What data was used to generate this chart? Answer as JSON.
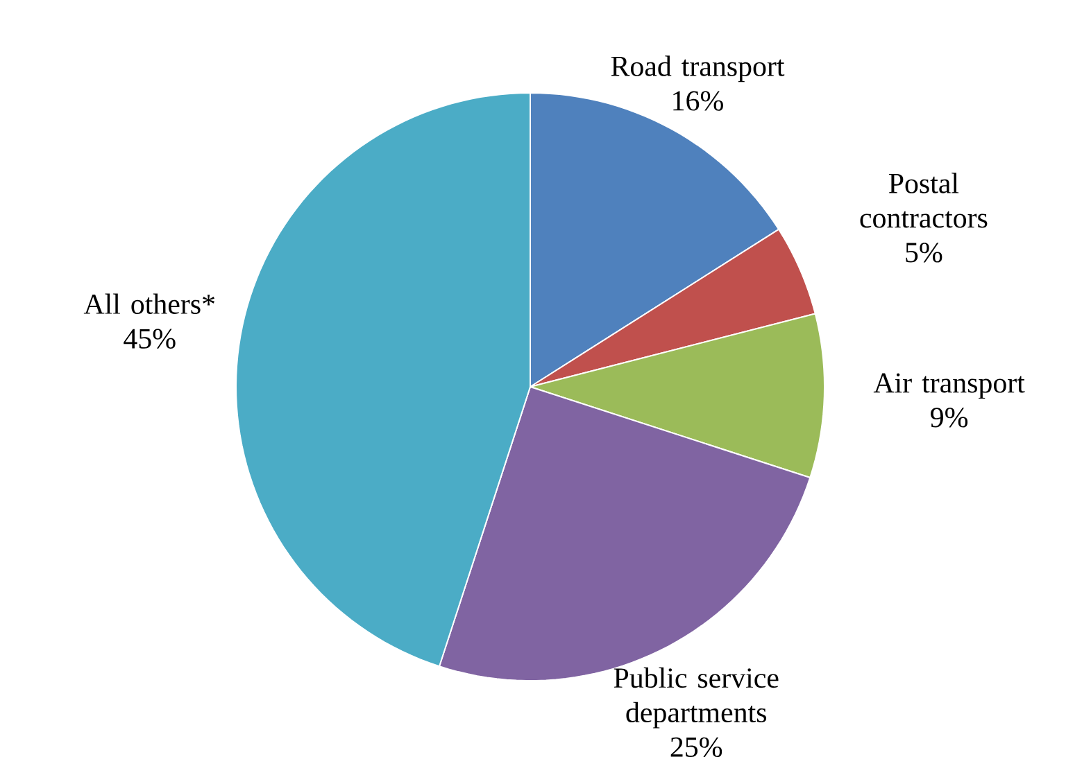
{
  "chart_data": {
    "type": "pie",
    "categories": [
      "Road transport",
      "Postal contractors",
      "Air transport",
      "Public service departments",
      "All others*"
    ],
    "values": [
      16,
      5,
      9,
      25,
      45
    ],
    "value_labels": [
      "16%",
      "5%",
      "9%",
      "25%",
      "45%"
    ],
    "colors": [
      "#4f81bd",
      "#c0504d",
      "#9bbb59",
      "#8064a2",
      "#4bacc6"
    ]
  }
}
